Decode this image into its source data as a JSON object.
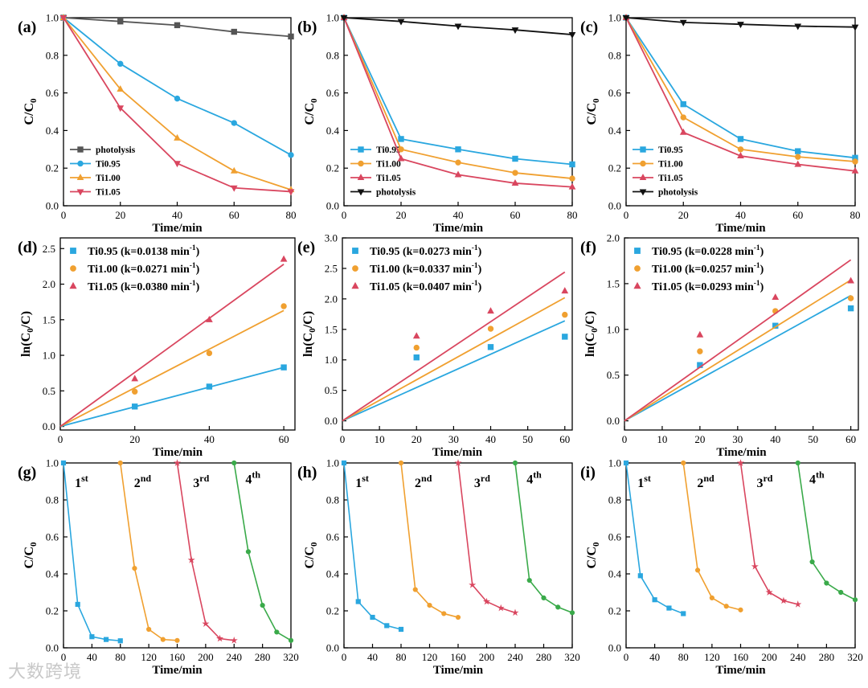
{
  "watermark": "大数跨境",
  "colors": {
    "blue": "#2aa7df",
    "orange": "#f0a030",
    "red": "#d9465f",
    "green": "#3aaa4a",
    "black": "#111111",
    "gray": "#555555"
  },
  "chart_data": [
    {
      "id": "a",
      "label": "(a)",
      "type": "line",
      "xlabel": "Time/min",
      "ylabel": "C/C0",
      "xlim": [
        0,
        80
      ],
      "ylim": [
        0,
        1.0
      ],
      "xticks": [
        0,
        20,
        40,
        60,
        80
      ],
      "yticks": [
        0.0,
        0.2,
        0.4,
        0.6,
        0.8,
        1.0
      ],
      "ytick_labels": [
        "0.0",
        "0.2",
        "0.4",
        "0.6",
        "0.8",
        "1.0"
      ],
      "legend": "bottom-left",
      "x": [
        0,
        20,
        40,
        60,
        80
      ],
      "series": [
        {
          "name": "photolysis",
          "color": "gray",
          "marker": "square",
          "values": [
            1.0,
            0.98,
            0.96,
            0.925,
            0.9
          ]
        },
        {
          "name": "Ti0.95",
          "color": "blue",
          "marker": "circle",
          "values": [
            1.0,
            0.755,
            0.57,
            0.44,
            0.27
          ]
        },
        {
          "name": "Ti1.00",
          "color": "orange",
          "marker": "triangle",
          "values": [
            1.0,
            0.62,
            0.36,
            0.185,
            0.085
          ]
        },
        {
          "name": "Ti1.05",
          "color": "red",
          "marker": "tridown",
          "values": [
            1.0,
            0.52,
            0.225,
            0.095,
            0.075
          ]
        }
      ]
    },
    {
      "id": "b",
      "label": "(b)",
      "type": "line",
      "xlabel": "Time/min",
      "ylabel": "C/C0",
      "xlim": [
        0,
        80
      ],
      "ylim": [
        0,
        1.0
      ],
      "xticks": [
        0,
        20,
        40,
        60,
        80
      ],
      "yticks": [
        0.0,
        0.2,
        0.4,
        0.6,
        0.8,
        1.0
      ],
      "ytick_labels": [
        "0.0",
        "0.2",
        "0.4",
        "0.6",
        "0.8",
        "1.0"
      ],
      "legend": "bottom-left",
      "x": [
        0,
        20,
        40,
        60,
        80
      ],
      "series": [
        {
          "name": "Ti0.95",
          "color": "blue",
          "marker": "square",
          "values": [
            1.0,
            0.355,
            0.3,
            0.25,
            0.22
          ]
        },
        {
          "name": "Ti1.00",
          "color": "orange",
          "marker": "circle",
          "values": [
            1.0,
            0.3,
            0.23,
            0.175,
            0.145
          ]
        },
        {
          "name": "Ti1.05",
          "color": "red",
          "marker": "triangle",
          "values": [
            1.0,
            0.25,
            0.165,
            0.12,
            0.1
          ]
        },
        {
          "name": "photolysis",
          "color": "black",
          "marker": "tridown",
          "values": [
            1.0,
            0.98,
            0.955,
            0.935,
            0.91
          ]
        }
      ]
    },
    {
      "id": "c",
      "label": "(c)",
      "type": "line",
      "xlabel": "Time/min",
      "ylabel": "C/C0",
      "xlim": [
        0,
        80
      ],
      "ylim": [
        0,
        1.0
      ],
      "xticks": [
        0,
        20,
        40,
        60,
        80
      ],
      "yticks": [
        0.0,
        0.2,
        0.4,
        0.6,
        0.8,
        1.0
      ],
      "ytick_labels": [
        "0.0",
        "0.2",
        "0.4",
        "0.6",
        "0.8",
        "1.0"
      ],
      "legend": "bottom-left",
      "x": [
        0,
        20,
        40,
        60,
        80
      ],
      "series": [
        {
          "name": "Ti0.95",
          "color": "blue",
          "marker": "square",
          "values": [
            1.0,
            0.54,
            0.355,
            0.29,
            0.255
          ]
        },
        {
          "name": "Ti1.00",
          "color": "orange",
          "marker": "circle",
          "values": [
            1.0,
            0.47,
            0.3,
            0.26,
            0.235
          ]
        },
        {
          "name": "Ti1.05",
          "color": "red",
          "marker": "triangle",
          "values": [
            1.0,
            0.39,
            0.265,
            0.22,
            0.185
          ]
        },
        {
          "name": "photolysis",
          "color": "black",
          "marker": "tridown",
          "values": [
            1.0,
            0.975,
            0.965,
            0.955,
            0.95
          ]
        }
      ]
    },
    {
      "id": "d",
      "label": "(d)",
      "type": "scatter",
      "xlabel": "Time/min",
      "ylabel": "ln(C0/C)",
      "xlim": [
        0,
        63
      ],
      "ylim": [
        -0.05,
        2.65
      ],
      "xticks": [
        0,
        20,
        40,
        60
      ],
      "yticks": [
        0.0,
        0.5,
        1.0,
        1.5,
        2.0,
        2.5
      ],
      "ytick_labels": [
        "0.0",
        "0.5",
        "1.0",
        "1.5",
        "2.0",
        "2.5"
      ],
      "legend": "top-left",
      "x": [
        20,
        40,
        60
      ],
      "series": [
        {
          "name": "Ti0.95 (k=0.0138 min",
          "legend_suffix": "-1",
          "legend_close": ")",
          "color": "blue",
          "marker": "square",
          "values": [
            0.28,
            0.56,
            0.83
          ],
          "fit": [
            0,
            0.83
          ]
        },
        {
          "name": "Ti1.00 (k=0.0271 min",
          "legend_suffix": "-1",
          "legend_close": ")",
          "color": "orange",
          "marker": "circle",
          "values": [
            0.49,
            1.03,
            1.69
          ],
          "fit": [
            0,
            1.63
          ]
        },
        {
          "name": "Ti1.05 (k=0.0380 min",
          "legend_suffix": "-1",
          "legend_close": ")",
          "color": "red",
          "marker": "triangle",
          "values": [
            0.67,
            1.5,
            2.35
          ],
          "fit": [
            0,
            2.28
          ]
        }
      ]
    },
    {
      "id": "e",
      "label": "(e)",
      "type": "scatter",
      "xlabel": "Time/min",
      "ylabel": "ln(C0/C)",
      "xlim": [
        0,
        62
      ],
      "ylim": [
        -0.15,
        3.0
      ],
      "xticks": [
        0,
        10,
        20,
        30,
        40,
        50,
        60
      ],
      "yticks": [
        0.0,
        0.5,
        1.0,
        1.5,
        2.0,
        2.5,
        3.0
      ],
      "ytick_labels": [
        "0.0",
        "0.5",
        "1.0",
        "1.5",
        "2.0",
        "2.5",
        "3.0"
      ],
      "legend": "top-left",
      "x": [
        20,
        40,
        60
      ],
      "series": [
        {
          "name": "Ti0.95 (k=0.0273 min",
          "legend_suffix": "-1",
          "legend_close": ")",
          "color": "blue",
          "marker": "square",
          "values": [
            1.04,
            1.21,
            1.38
          ],
          "fit": [
            0,
            1.64
          ]
        },
        {
          "name": "Ti1.00 (k=0.0337 min",
          "legend_suffix": "-1",
          "legend_close": ")",
          "color": "orange",
          "marker": "circle",
          "values": [
            1.2,
            1.51,
            1.74
          ],
          "fit": [
            0,
            2.02
          ]
        },
        {
          "name": "Ti1.05 (k=0.0407 min",
          "legend_suffix": "-1",
          "legend_close": ")",
          "color": "red",
          "marker": "triangle",
          "values": [
            1.39,
            1.8,
            2.13
          ],
          "fit": [
            0,
            2.44
          ]
        }
      ]
    },
    {
      "id": "f",
      "label": "(f)",
      "type": "scatter",
      "xlabel": "Time/min",
      "ylabel": "ln(C0/C)",
      "xlim": [
        0,
        62
      ],
      "ylim": [
        -0.1,
        2.0
      ],
      "xticks": [
        0,
        10,
        20,
        30,
        40,
        50,
        60
      ],
      "yticks": [
        0.0,
        0.5,
        1.0,
        1.5,
        2.0
      ],
      "ytick_labels": [
        "0.0",
        "0.5",
        "1.0",
        "1.5",
        "2.0"
      ],
      "legend": "top-left",
      "x": [
        20,
        40,
        60
      ],
      "series": [
        {
          "name": "Ti0.95 (k=0.0228 min",
          "legend_suffix": "-1",
          "legend_close": ")",
          "color": "blue",
          "marker": "square",
          "values": [
            0.61,
            1.04,
            1.23
          ],
          "fit": [
            0,
            1.37
          ]
        },
        {
          "name": "Ti1.00 (k=0.0257 min",
          "legend_suffix": "-1",
          "legend_close": ")",
          "color": "orange",
          "marker": "circle",
          "values": [
            0.76,
            1.2,
            1.34
          ],
          "fit": [
            0,
            1.54
          ]
        },
        {
          "name": "Ti1.05 (k=0.0293 min",
          "legend_suffix": "-1",
          "legend_close": ")",
          "color": "red",
          "marker": "triangle",
          "values": [
            0.94,
            1.35,
            1.53
          ],
          "fit": [
            0,
            1.76
          ]
        }
      ]
    },
    {
      "id": "g",
      "label": "(g)",
      "type": "line",
      "xlabel": "Time/min",
      "ylabel": "C/C0",
      "xlim": [
        0,
        320
      ],
      "ylim": [
        0,
        1.0
      ],
      "xticks": [
        0,
        40,
        80,
        120,
        160,
        200,
        240,
        280,
        320
      ],
      "yticks": [
        0.0,
        0.2,
        0.4,
        0.6,
        0.8,
        1.0
      ],
      "ytick_labels": [
        "0.0",
        "0.2",
        "0.4",
        "0.6",
        "0.8",
        "1.0"
      ],
      "legend": "none",
      "cycles": [
        {
          "name": "1",
          "suffix": "st",
          "color": "blue",
          "marker": "square",
          "x": [
            0,
            20,
            40,
            60,
            80
          ],
          "values": [
            1.0,
            0.235,
            0.06,
            0.045,
            0.038
          ]
        },
        {
          "name": "2",
          "suffix": "nd",
          "color": "orange",
          "marker": "circle",
          "x": [
            80,
            100,
            120,
            140,
            160
          ],
          "values": [
            1.0,
            0.43,
            0.1,
            0.045,
            0.04
          ]
        },
        {
          "name": "3",
          "suffix": "rd",
          "color": "red",
          "marker": "star",
          "x": [
            160,
            180,
            200,
            220,
            240
          ],
          "values": [
            1.0,
            0.475,
            0.13,
            0.05,
            0.04
          ]
        },
        {
          "name": "4",
          "suffix": "th",
          "color": "green",
          "marker": "circle",
          "x": [
            240,
            260,
            280,
            300,
            320
          ],
          "values": [
            1.0,
            0.52,
            0.23,
            0.085,
            0.04
          ]
        }
      ]
    },
    {
      "id": "h",
      "label": "(h)",
      "type": "line",
      "xlabel": "Time/min",
      "ylabel": "C/C0",
      "xlim": [
        0,
        320
      ],
      "ylim": [
        0,
        1.0
      ],
      "xticks": [
        0,
        40,
        80,
        120,
        160,
        200,
        240,
        280,
        320
      ],
      "yticks": [
        0.0,
        0.2,
        0.4,
        0.6,
        0.8,
        1.0
      ],
      "ytick_labels": [
        "0.0",
        "0.2",
        "0.4",
        "0.6",
        "0.8",
        "1.0"
      ],
      "legend": "none",
      "cycles": [
        {
          "name": "1",
          "suffix": "st",
          "color": "blue",
          "marker": "square",
          "x": [
            0,
            20,
            40,
            60,
            80
          ],
          "values": [
            1.0,
            0.25,
            0.165,
            0.12,
            0.1
          ]
        },
        {
          "name": "2",
          "suffix": "nd",
          "color": "orange",
          "marker": "circle",
          "x": [
            80,
            100,
            120,
            140,
            160
          ],
          "values": [
            1.0,
            0.315,
            0.23,
            0.185,
            0.165
          ]
        },
        {
          "name": "3",
          "suffix": "rd",
          "color": "red",
          "marker": "star",
          "x": [
            160,
            180,
            200,
            220,
            240
          ],
          "values": [
            1.0,
            0.34,
            0.25,
            0.215,
            0.19
          ]
        },
        {
          "name": "4",
          "suffix": "th",
          "color": "green",
          "marker": "circle",
          "x": [
            240,
            260,
            280,
            300,
            320
          ],
          "values": [
            1.0,
            0.365,
            0.27,
            0.22,
            0.19
          ]
        }
      ]
    },
    {
      "id": "i",
      "label": "(i)",
      "type": "line",
      "xlabel": "Time/min",
      "ylabel": "C/C0",
      "xlim": [
        0,
        320
      ],
      "ylim": [
        0,
        1.0
      ],
      "xticks": [
        0,
        40,
        80,
        120,
        160,
        200,
        240,
        280,
        320
      ],
      "yticks": [
        0.0,
        0.2,
        0.4,
        0.6,
        0.8,
        1.0
      ],
      "ytick_labels": [
        "0.0",
        "0.2",
        "0.4",
        "0.6",
        "0.8",
        "1.0"
      ],
      "legend": "none",
      "cycles": [
        {
          "name": "1",
          "suffix": "st",
          "color": "blue",
          "marker": "square",
          "x": [
            0,
            20,
            40,
            60,
            80
          ],
          "values": [
            1.0,
            0.39,
            0.26,
            0.215,
            0.185
          ]
        },
        {
          "name": "2",
          "suffix": "nd",
          "color": "orange",
          "marker": "circle",
          "x": [
            80,
            100,
            120,
            140,
            160
          ],
          "values": [
            1.0,
            0.42,
            0.27,
            0.225,
            0.205
          ]
        },
        {
          "name": "3",
          "suffix": "rd",
          "color": "red",
          "marker": "star",
          "x": [
            160,
            180,
            200,
            220,
            240
          ],
          "values": [
            1.0,
            0.44,
            0.3,
            0.255,
            0.235
          ]
        },
        {
          "name": "4",
          "suffix": "th",
          "color": "green",
          "marker": "circle",
          "x": [
            240,
            260,
            280,
            300,
            320
          ],
          "values": [
            1.0,
            0.465,
            0.35,
            0.3,
            0.26
          ]
        }
      ]
    }
  ]
}
